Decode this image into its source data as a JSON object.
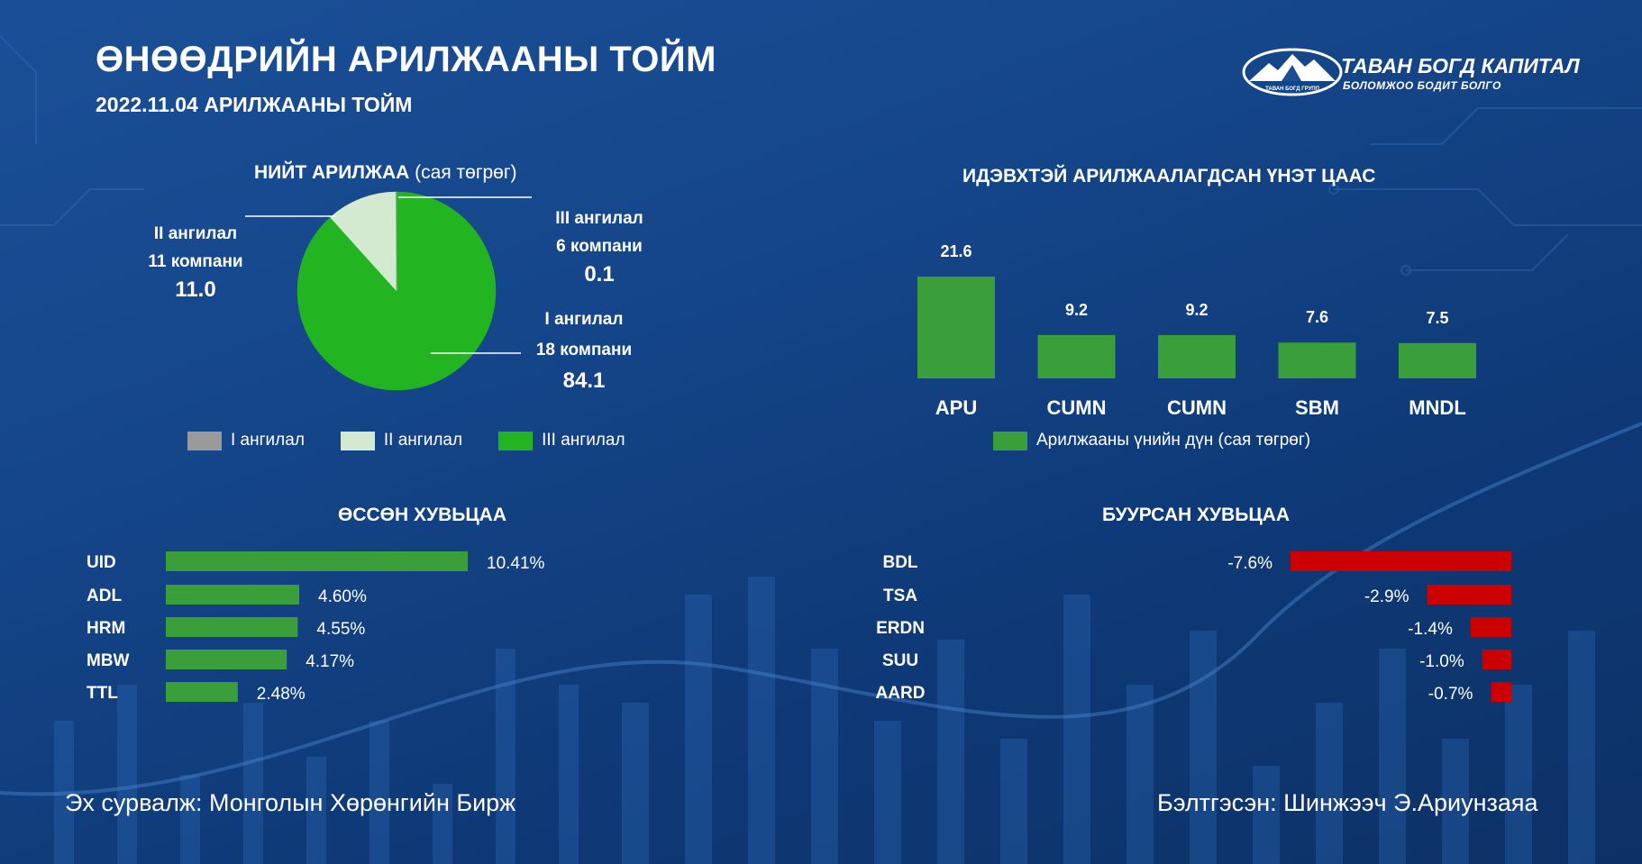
{
  "header": {
    "title": "ӨНӨӨДРИЙН АРИЛЖААНЫ ТОЙМ",
    "subtitle": "2022.11.04 АРИЛЖААНЫ ТОЙМ"
  },
  "logo": {
    "brand": "ТАВАН БОГД КАПИТАЛ",
    "tagline": "БОЛОМЖОО БОДИТ БОЛГО",
    "emblem_text": "ТАВАН БОГД ГРУПП"
  },
  "colors": {
    "green": "#22b521",
    "bar_green": "#3a9e3a",
    "red": "#cc0000",
    "pale_green": "#d4ead0",
    "gray": "#9a9a9a"
  },
  "pie": {
    "title": "НИЙТ АРИЛЖАА",
    "unit": "(сая төгрөг)",
    "labels": [
      {
        "line1": "II ангилал",
        "line2": "11 компани",
        "value": "11.0"
      },
      {
        "line1": "III ангилал",
        "line2": "6 компани",
        "value": "0.1"
      },
      {
        "line1": "I ангилал",
        "line2": "18 компани",
        "value": "84.1"
      }
    ],
    "legend": [
      "I ангилал",
      "II ангилал",
      "III ангилал"
    ]
  },
  "footer": {
    "source": "Эх сурвалж: Монголын Хөрөнгийн Бирж",
    "prepared": "Бэлтгэсэн: Шинжээч Э.Ариунзаяа"
  },
  "chart_data": [
    {
      "type": "pie",
      "title": "НИЙТ АРИЛЖАА",
      "unit": "(сая төгрөг)",
      "slices": [
        {
          "name": "I ангилал",
          "value": 84.1,
          "color": "#22b521"
        },
        {
          "name": "II ангилал",
          "value": 11.0,
          "color": "#d4ead0"
        },
        {
          "name": "III ангилал",
          "value": 0.1,
          "color": "#9a9a9a"
        }
      ]
    },
    {
      "type": "bar",
      "title": "ИДЭВХТЭЙ АРИЛЖААЛАГДСАН ҮНЭТ ЦААС",
      "categories": [
        "APU",
        "CUMN",
        "CUMN",
        "SBM",
        "MNDL"
      ],
      "values": [
        21.6,
        9.2,
        9.2,
        7.6,
        7.5
      ],
      "labels": [
        "21.6",
        "9.2",
        "9.2",
        "7.6",
        "7.5"
      ],
      "legend": "Арилжааны үнийн дүн (сая төгрөг)",
      "color": "#3a9e3a"
    },
    {
      "type": "bar",
      "orientation": "horizontal",
      "title": "ӨССӨН ХУВЬЦАА",
      "categories": [
        "UID",
        "ADL",
        "HRM",
        "MBW",
        "TTL"
      ],
      "values": [
        10.41,
        4.6,
        4.55,
        4.17,
        2.48
      ],
      "labels": [
        "10.41%",
        "4.60%",
        "4.55%",
        "4.17%",
        "2.48%"
      ],
      "color": "#3a9e3a"
    },
    {
      "type": "bar",
      "orientation": "horizontal",
      "title": "БУУРСАН ХУВЬЦАА",
      "categories": [
        "BDL",
        "TSA",
        "ERDN",
        "SUU",
        "AARD"
      ],
      "values": [
        -7.6,
        -2.9,
        -1.4,
        -1.0,
        -0.7
      ],
      "labels": [
        "-7.6%",
        "-2.9%",
        "-1.4%",
        "-1.0%",
        "-0.7%"
      ],
      "color": "#cc0000"
    }
  ]
}
